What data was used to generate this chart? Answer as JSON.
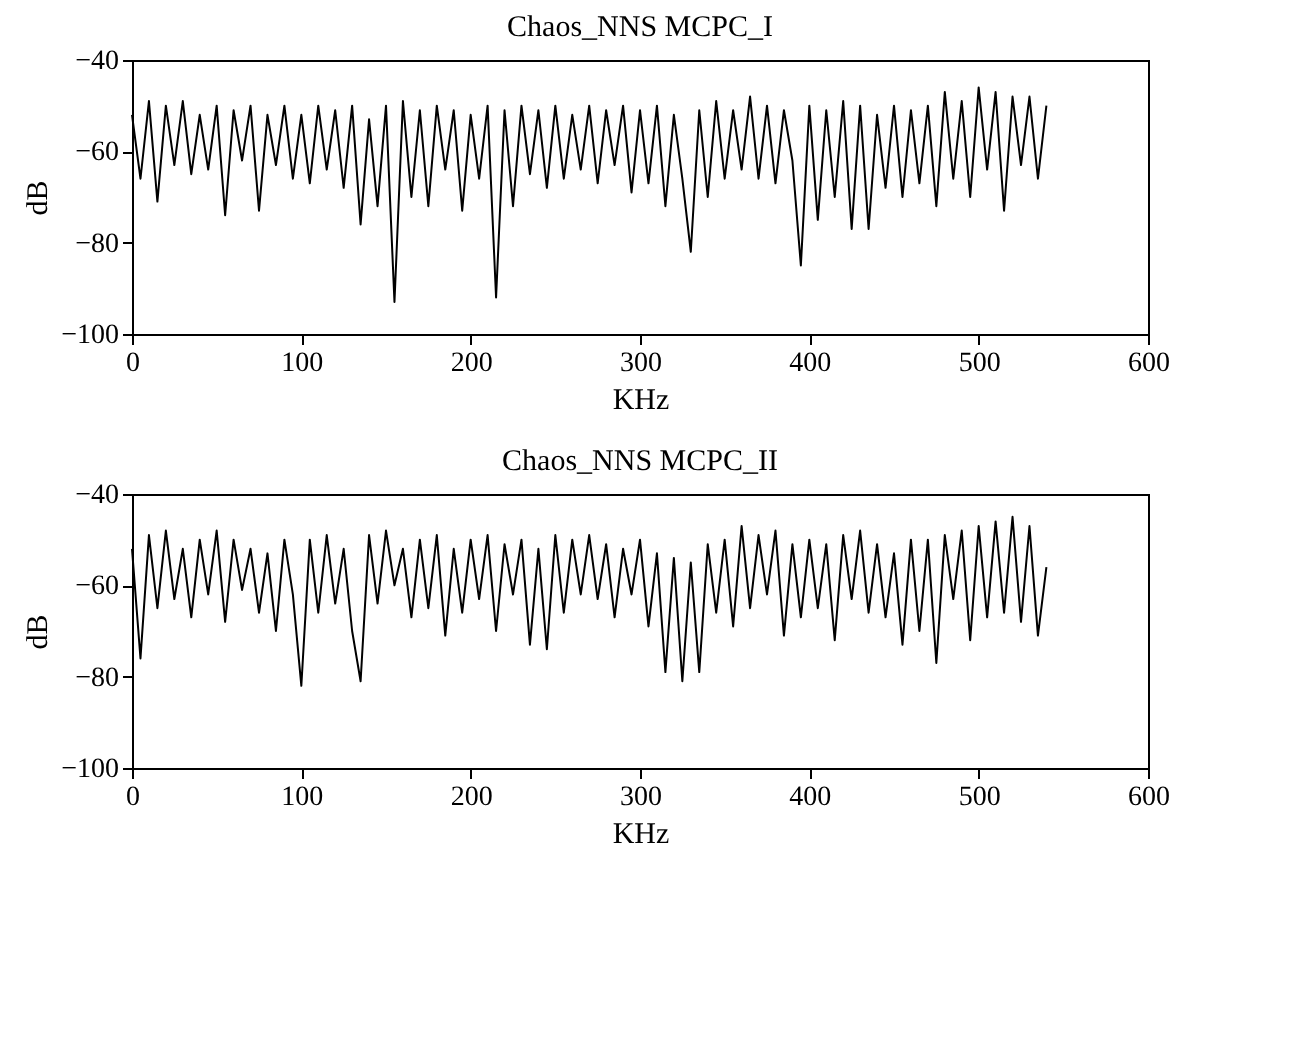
{
  "chart_data": [
    {
      "type": "line",
      "title": "Chaos_NNS MCPC_I",
      "xlabel": "KHz",
      "ylabel": "dB",
      "xlim": [
        0,
        600
      ],
      "xticks": [
        0,
        100,
        200,
        300,
        400,
        500,
        600
      ],
      "ylim": [
        -100,
        -40
      ],
      "yticks": [
        -100,
        -80,
        -60,
        -40
      ],
      "grid": false,
      "line_style": "solid",
      "x": [
        0,
        5,
        10,
        15,
        20,
        25,
        30,
        35,
        40,
        45,
        50,
        55,
        60,
        65,
        70,
        75,
        80,
        85,
        90,
        95,
        100,
        105,
        110,
        115,
        120,
        125,
        130,
        135,
        140,
        145,
        150,
        155,
        160,
        165,
        170,
        175,
        180,
        185,
        190,
        195,
        200,
        205,
        210,
        215,
        220,
        225,
        230,
        235,
        240,
        245,
        250,
        255,
        260,
        265,
        270,
        275,
        280,
        285,
        290,
        295,
        300,
        305,
        310,
        315,
        320,
        325,
        330,
        335,
        340,
        345,
        350,
        355,
        360,
        365,
        370,
        375,
        380,
        385,
        390,
        395,
        400,
        405,
        410,
        415,
        420,
        425,
        430,
        435,
        440,
        445,
        450,
        455,
        460,
        465,
        470,
        475,
        480,
        485,
        490,
        495,
        500,
        505,
        510,
        515,
        520,
        525,
        530,
        535,
        540
      ],
      "series": [
        {
          "color": "#000000",
          "values": [
            -52,
            -66,
            -49,
            -71,
            -50,
            -63,
            -49,
            -65,
            -52,
            -64,
            -50,
            -74,
            -51,
            -62,
            -50,
            -73,
            -52,
            -63,
            -50,
            -66,
            -52,
            -67,
            -50,
            -64,
            -51,
            -68,
            -50,
            -76,
            -53,
            -72,
            -50,
            -93,
            -49,
            -70,
            -51,
            -72,
            -50,
            -64,
            -51,
            -73,
            -52,
            -66,
            -50,
            -92,
            -51,
            -72,
            -50,
            -65,
            -51,
            -68,
            -50,
            -66,
            -52,
            -64,
            -50,
            -67,
            -51,
            -63,
            -50,
            -69,
            -51,
            -67,
            -50,
            -72,
            -52,
            -66,
            -82,
            -51,
            -70,
            -49,
            -66,
            -51,
            -64,
            -48,
            -66,
            -50,
            -67,
            -51,
            -62,
            -85,
            -50,
            -75,
            -51,
            -70,
            -49,
            -77,
            -50,
            -77,
            -52,
            -68,
            -50,
            -70,
            -51,
            -67,
            -50,
            -72,
            -47,
            -66,
            -49,
            -70,
            -46,
            -64,
            -47,
            -73,
            -48,
            -63,
            -48,
            -66,
            -50
          ]
        }
      ]
    },
    {
      "type": "line",
      "title": "Chaos_NNS MCPC_II",
      "xlabel": "KHz",
      "ylabel": "dB",
      "xlim": [
        0,
        600
      ],
      "xticks": [
        0,
        100,
        200,
        300,
        400,
        500,
        600
      ],
      "ylim": [
        -100,
        -40
      ],
      "yticks": [
        -100,
        -80,
        -60,
        -40
      ],
      "grid": false,
      "line_style": "solid",
      "x": [
        0,
        5,
        10,
        15,
        20,
        25,
        30,
        35,
        40,
        45,
        50,
        55,
        60,
        65,
        70,
        75,
        80,
        85,
        90,
        95,
        100,
        105,
        110,
        115,
        120,
        125,
        130,
        135,
        140,
        145,
        150,
        155,
        160,
        165,
        170,
        175,
        180,
        185,
        190,
        195,
        200,
        205,
        210,
        215,
        220,
        225,
        230,
        235,
        240,
        245,
        250,
        255,
        260,
        265,
        270,
        275,
        280,
        285,
        290,
        295,
        300,
        305,
        310,
        315,
        320,
        325,
        330,
        335,
        340,
        345,
        350,
        355,
        360,
        365,
        370,
        375,
        380,
        385,
        390,
        395,
        400,
        405,
        410,
        415,
        420,
        425,
        430,
        435,
        440,
        445,
        450,
        455,
        460,
        465,
        470,
        475,
        480,
        485,
        490,
        495,
        500,
        505,
        510,
        515,
        520,
        525,
        530,
        535,
        540
      ],
      "series": [
        {
          "color": "#000000",
          "values": [
            -52,
            -76,
            -49,
            -65,
            -48,
            -63,
            -52,
            -67,
            -50,
            -62,
            -48,
            -68,
            -50,
            -61,
            -52,
            -66,
            -53,
            -70,
            -50,
            -62,
            -82,
            -50,
            -66,
            -49,
            -64,
            -52,
            -70,
            -81,
            -49,
            -64,
            -48,
            -60,
            -52,
            -67,
            -50,
            -65,
            -49,
            -71,
            -52,
            -66,
            -50,
            -63,
            -49,
            -70,
            -51,
            -62,
            -50,
            -73,
            -52,
            -74,
            -49,
            -66,
            -50,
            -62,
            -49,
            -63,
            -51,
            -67,
            -52,
            -62,
            -50,
            -69,
            -53,
            -79,
            -54,
            -81,
            -55,
            -79,
            -51,
            -66,
            -50,
            -69,
            -47,
            -65,
            -49,
            -62,
            -48,
            -71,
            -51,
            -67,
            -50,
            -65,
            -51,
            -72,
            -49,
            -63,
            -48,
            -66,
            -51,
            -67,
            -53,
            -73,
            -50,
            -70,
            -50,
            -77,
            -49,
            -63,
            -48,
            -72,
            -47,
            -67,
            -46,
            -66,
            -45,
            -68,
            -47,
            -71,
            -56
          ]
        }
      ]
    }
  ]
}
